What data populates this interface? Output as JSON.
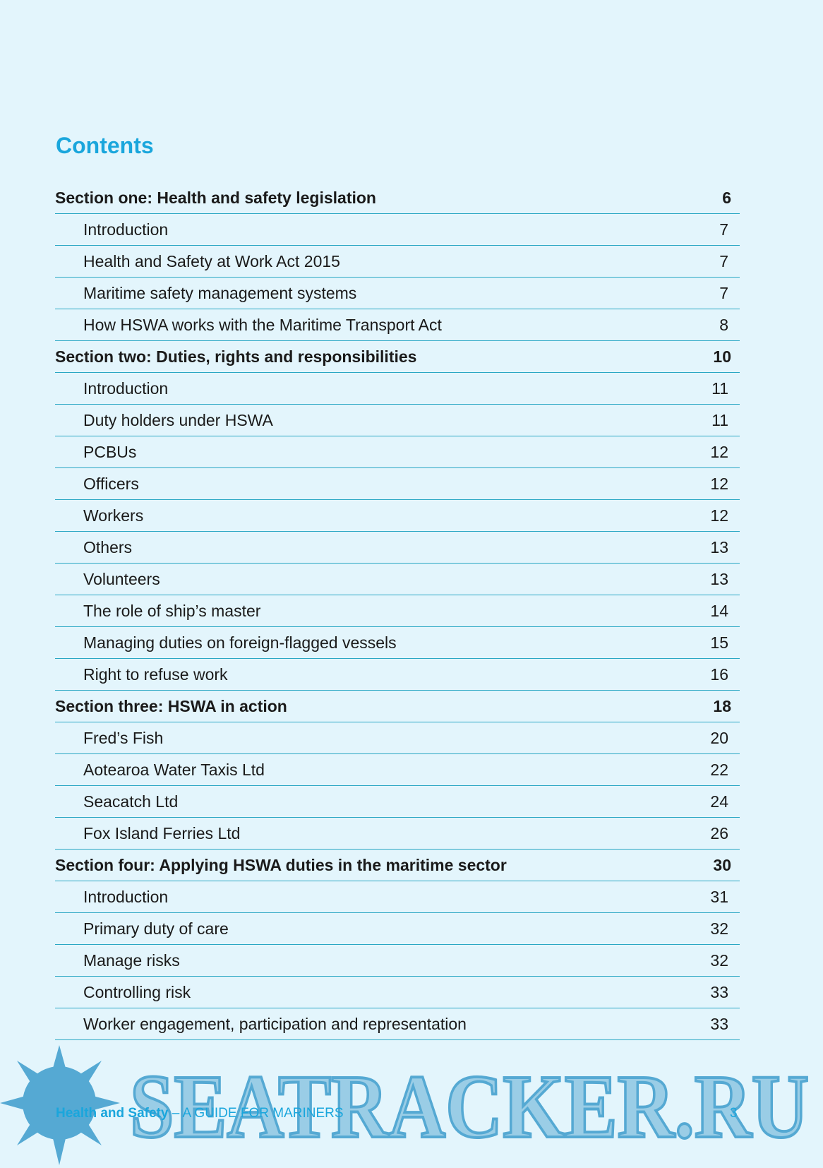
{
  "title": "Contents",
  "entries": [
    {
      "level": "section",
      "label": "Section one: Health and safety legislation",
      "page": 6
    },
    {
      "level": "item",
      "label": "Introduction",
      "page": 7
    },
    {
      "level": "item",
      "label": "Health and Safety at Work Act 2015",
      "page": 7
    },
    {
      "level": "item",
      "label": "Maritime safety management systems",
      "page": 7
    },
    {
      "level": "item",
      "label": "How HSWA works with the Maritime Transport Act",
      "page": 8
    },
    {
      "level": "section",
      "label": "Section two: Duties, rights and responsibilities",
      "page": 10
    },
    {
      "level": "item",
      "label": "Introduction",
      "page": 11
    },
    {
      "level": "item",
      "label": "Duty holders under HSWA",
      "page": 11
    },
    {
      "level": "item",
      "label": "PCBUs",
      "page": 12
    },
    {
      "level": "item",
      "label": "Officers",
      "page": 12
    },
    {
      "level": "item",
      "label": "Workers",
      "page": 12
    },
    {
      "level": "item",
      "label": "Others",
      "page": 13
    },
    {
      "level": "item",
      "label": "Volunteers",
      "page": 13
    },
    {
      "level": "item",
      "label": "The role of ship’s master",
      "page": 14
    },
    {
      "level": "item",
      "label": "Managing duties on foreign-flagged vessels",
      "page": 15
    },
    {
      "level": "item",
      "label": "Right to refuse work",
      "page": 16
    },
    {
      "level": "section",
      "label": "Section three: HSWA in action",
      "page": 18
    },
    {
      "level": "item",
      "label": "Fred’s Fish",
      "page": 20
    },
    {
      "level": "item",
      "label": "Aotearoa Water Taxis Ltd",
      "page": 22
    },
    {
      "level": "item",
      "label": "Seacatch Ltd",
      "page": 24
    },
    {
      "level": "item",
      "label": "Fox Island Ferries Ltd",
      "page": 26
    },
    {
      "level": "section",
      "label": "Section four: Applying HSWA duties in the maritime sector",
      "page": 30
    },
    {
      "level": "item",
      "label": "Introduction",
      "page": 31
    },
    {
      "level": "item",
      "label": "Primary duty of care",
      "page": 32
    },
    {
      "level": "item",
      "label": "Manage risks",
      "page": 32
    },
    {
      "level": "item",
      "label": "Controlling risk",
      "page": 33
    },
    {
      "level": "item",
      "label": "Worker engagement, participation and representation",
      "page": 33
    }
  ],
  "footer": {
    "title": "Health and Safety",
    "subtitle": " – A GUIDE FOR MARINERS",
    "page": 3
  },
  "watermark": "SEATRACKER.RU"
}
